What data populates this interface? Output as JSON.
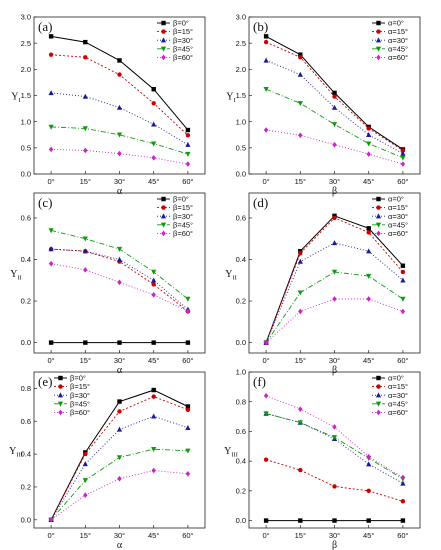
{
  "series_styles": [
    {
      "color": "#000000",
      "marker": "square",
      "dash": ""
    },
    {
      "color": "#cc0000",
      "marker": "circle",
      "dash": "2,2"
    },
    {
      "color": "#1a1a99",
      "marker": "triangle-up",
      "dash": "1,2"
    },
    {
      "color": "#119911",
      "marker": "triangle-down",
      "dash": "5,2,1,2"
    },
    {
      "color": "#cc22cc",
      "marker": "diamond",
      "dash": "1,2"
    }
  ],
  "chart_data": [
    {
      "type": "line",
      "panel_label": "(a)",
      "xlabel": "α",
      "ylabel": "Y",
      "ylabel_sub": "I",
      "categories": [
        "0°",
        "15°",
        "30°",
        "45°",
        "60°"
      ],
      "ylim": [
        0,
        3.0
      ],
      "yticks": [
        "0.0",
        "0.5",
        "1.0",
        "1.5",
        "2.0",
        "2.5",
        "3.0"
      ],
      "legend_position": "top-right",
      "series": [
        {
          "name": "β=0°",
          "values": [
            2.63,
            2.52,
            2.17,
            1.62,
            0.84
          ]
        },
        {
          "name": "β=15°",
          "values": [
            2.28,
            2.23,
            1.9,
            1.35,
            0.74
          ]
        },
        {
          "name": "β=30°",
          "values": [
            1.55,
            1.48,
            1.27,
            0.95,
            0.56
          ]
        },
        {
          "name": "β=45°",
          "values": [
            0.9,
            0.87,
            0.75,
            0.58,
            0.38
          ]
        },
        {
          "name": "β=60°",
          "values": [
            0.47,
            0.45,
            0.39,
            0.31,
            0.19
          ]
        }
      ]
    },
    {
      "type": "line",
      "panel_label": "(b)",
      "xlabel": "β",
      "ylabel": "Y",
      "ylabel_sub": "I",
      "categories": [
        "0°",
        "15°",
        "30°",
        "45°",
        "60°"
      ],
      "ylim": [
        0,
        3.0
      ],
      "yticks": [
        "0.0",
        "0.5",
        "1.0",
        "1.5",
        "2.0",
        "2.5",
        "3.0"
      ],
      "legend_position": "top-right",
      "series": [
        {
          "name": "α=0°",
          "values": [
            2.63,
            2.28,
            1.55,
            0.9,
            0.47
          ]
        },
        {
          "name": "α=15°",
          "values": [
            2.52,
            2.23,
            1.48,
            0.87,
            0.45
          ]
        },
        {
          "name": "α=30°",
          "values": [
            2.17,
            1.9,
            1.27,
            0.75,
            0.39
          ]
        },
        {
          "name": "α=45°",
          "values": [
            1.62,
            1.35,
            0.95,
            0.58,
            0.31
          ]
        },
        {
          "name": "α=60°",
          "values": [
            0.84,
            0.74,
            0.56,
            0.38,
            0.19
          ]
        }
      ]
    },
    {
      "type": "line",
      "panel_label": "(c)",
      "xlabel": "α",
      "ylabel": "Y",
      "ylabel_sub": "II",
      "categories": [
        "0°",
        "15°",
        "30°",
        "45°",
        "60°"
      ],
      "ylim": [
        -0.05,
        0.72
      ],
      "yticks": [
        "0.0",
        "0.2",
        "0.4",
        "0.6"
      ],
      "legend_position": "top-right",
      "series": [
        {
          "name": "β=0°",
          "values": [
            0.0,
            0.0,
            0.0,
            0.0,
            0.0
          ]
        },
        {
          "name": "β=15°",
          "values": [
            0.45,
            0.44,
            0.39,
            0.28,
            0.15
          ]
        },
        {
          "name": "β=30°",
          "values": [
            0.45,
            0.44,
            0.4,
            0.3,
            0.16
          ]
        },
        {
          "name": "β=45°",
          "values": [
            0.54,
            0.5,
            0.45,
            0.34,
            0.21
          ]
        },
        {
          "name": "β=60°",
          "values": [
            0.38,
            0.35,
            0.29,
            0.23,
            0.15
          ]
        }
      ]
    },
    {
      "type": "line",
      "panel_label": "(d)",
      "xlabel": "β",
      "ylabel": "Y",
      "ylabel_sub": "II",
      "categories": [
        "0°",
        "15°",
        "30°",
        "45°",
        "60°"
      ],
      "ylim": [
        -0.05,
        0.72
      ],
      "yticks": [
        "0.0",
        "0.2",
        "0.4",
        "0.6"
      ],
      "legend_position": "top-right",
      "series": [
        {
          "name": "α=0°",
          "values": [
            0.0,
            0.44,
            0.61,
            0.55,
            0.37
          ]
        },
        {
          "name": "α=15°",
          "values": [
            0.0,
            0.43,
            0.6,
            0.53,
            0.34
          ]
        },
        {
          "name": "α=30°",
          "values": [
            0.0,
            0.39,
            0.48,
            0.44,
            0.3
          ]
        },
        {
          "name": "α=45°",
          "values": [
            0.0,
            0.24,
            0.34,
            0.32,
            0.21
          ]
        },
        {
          "name": "α=60°",
          "values": [
            0.0,
            0.15,
            0.21,
            0.21,
            0.15
          ]
        }
      ]
    },
    {
      "type": "line",
      "panel_label": "(e)",
      "xlabel": "α",
      "ylabel": "Y",
      "ylabel_sub": "III",
      "categories": [
        "0°",
        "15°",
        "30°",
        "45°",
        "60°"
      ],
      "ylim": [
        -0.05,
        0.9
      ],
      "yticks": [
        "0.0",
        "0.2",
        "0.4",
        "0.6",
        "0.8"
      ],
      "legend_position": "top-left",
      "series": [
        {
          "name": "β=0°",
          "values": [
            0.0,
            0.41,
            0.72,
            0.79,
            0.69
          ]
        },
        {
          "name": "β=15°",
          "values": [
            0.0,
            0.4,
            0.66,
            0.75,
            0.67
          ]
        },
        {
          "name": "β=30°",
          "values": [
            0.0,
            0.34,
            0.55,
            0.63,
            0.56
          ]
        },
        {
          "name": "β=45°",
          "values": [
            0.0,
            0.24,
            0.38,
            0.43,
            0.42
          ]
        },
        {
          "name": "β=60°",
          "values": [
            0.0,
            0.15,
            0.25,
            0.3,
            0.28
          ]
        }
      ]
    },
    {
      "type": "line",
      "panel_label": "(f)",
      "xlabel": "β",
      "ylabel": "Y",
      "ylabel_sub": "III",
      "categories": [
        "0°",
        "15°",
        "30°",
        "45°",
        "60°"
      ],
      "ylim": [
        -0.05,
        1.0
      ],
      "yticks": [
        "0.0",
        "0.2",
        "0.4",
        "0.6",
        "0.8",
        "1.0"
      ],
      "legend_position": "top-right",
      "series": [
        {
          "name": "α=0°",
          "values": [
            0.0,
            0.0,
            0.0,
            0.0,
            0.0
          ]
        },
        {
          "name": "α=15°",
          "values": [
            0.41,
            0.34,
            0.23,
            0.2,
            0.13
          ]
        },
        {
          "name": "α=30°",
          "values": [
            0.72,
            0.66,
            0.55,
            0.38,
            0.25
          ]
        },
        {
          "name": "α=45°",
          "values": [
            0.72,
            0.66,
            0.56,
            0.42,
            0.28
          ]
        },
        {
          "name": "α=60°",
          "values": [
            0.84,
            0.75,
            0.63,
            0.43,
            0.29
          ]
        }
      ]
    }
  ]
}
